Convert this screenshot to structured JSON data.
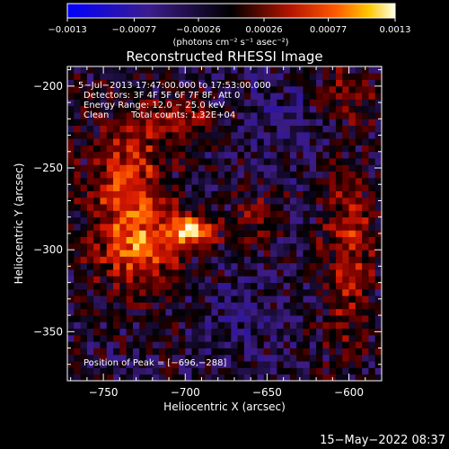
{
  "chart_data": {
    "type": "heatmap",
    "title": "Reconstructed RHESSI Image",
    "xlabel": "Heliocentric X (arcsec)",
    "ylabel": "Heliocentric Y (arcsec)",
    "xlim": [
      -772,
      -580
    ],
    "ylim": [
      -380,
      -188
    ],
    "x_ticks": [
      -750,
      -700,
      -650,
      -600
    ],
    "x_tick_labels": [
      "−750",
      "−700",
      "−650",
      "−600"
    ],
    "y_ticks": [
      -200,
      -250,
      -300,
      -350
    ],
    "y_tick_labels": [
      "−200",
      "−250",
      "−300",
      "−350"
    ],
    "colorbar": {
      "range": [
        -0.0013,
        0.0013
      ],
      "ticks": [
        -0.0013,
        -0.00077,
        -0.00026,
        0.00026,
        0.00077,
        0.0013
      ],
      "tick_labels": [
        "−0.0013",
        "−0.00077",
        "−0.00026",
        "0.00026",
        "0.00077",
        "0.0013"
      ],
      "unit_label": "(photons cm⁻² s⁻¹ asec⁻²)"
    },
    "annotations": {
      "time": "5−Jul−2013 17:47:00.000 to 17:53:00.000",
      "detectors": "Detectors: 3F 4F 5F 6F 7F 8F, Att 0",
      "energy": "Energy Range: 12.0 − 25.0 keV",
      "method": "Clean",
      "counts": "Total counts: 1.32E+04",
      "peak": "Position of Peak = [−696,−288]"
    },
    "peak": [
      -696,
      -288
    ],
    "colors": {
      "min": "#0000ff",
      "zero": "#000000",
      "max": "#ffffe8",
      "axes": "#ffffff"
    }
  },
  "footer": {
    "timestamp": "15−May−2022 08:37"
  }
}
